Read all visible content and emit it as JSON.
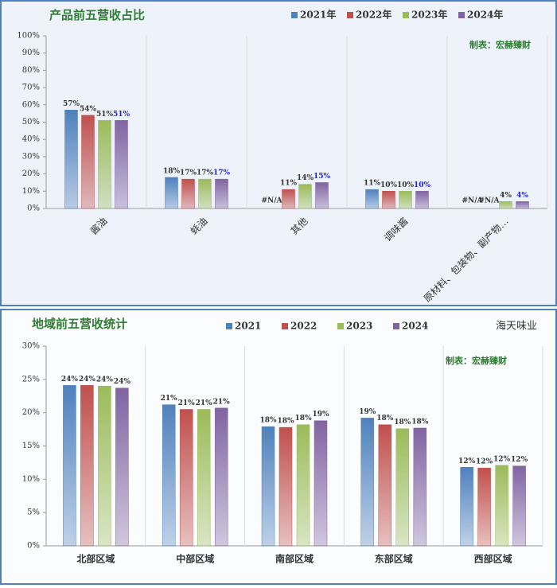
{
  "chart_data": [
    {
      "type": "bar",
      "title": "产品前五营收占比",
      "annotation": "制表：宏赫臻财",
      "categories": [
        "酱油",
        "蚝油",
        "其他",
        "调味酱",
        "原材料、包装物、副产物…"
      ],
      "series": [
        {
          "name": "2021年",
          "color": "#4f81bd",
          "values": [
            57,
            18,
            null,
            11,
            null
          ],
          "value_labels": [
            "57%",
            "18%",
            "#N/A",
            "11%",
            "#N/A"
          ]
        },
        {
          "name": "2022年",
          "color": "#c0504d",
          "values": [
            54,
            17,
            11,
            10,
            null
          ],
          "value_labels": [
            "54%",
            "17%",
            "11%",
            "10%",
            "#N/A"
          ]
        },
        {
          "name": "2023年",
          "color": "#9bbb59",
          "values": [
            51,
            17,
            14,
            10,
            4
          ],
          "value_labels": [
            "51%",
            "17%",
            "14%",
            "10%",
            "4%"
          ]
        },
        {
          "name": "2024年",
          "color": "#8064a2",
          "values": [
            51,
            17,
            15,
            10,
            4
          ],
          "value_labels": [
            "51%",
            "17%",
            "15%",
            "10%",
            "4%"
          ],
          "label_color": "#1a1aff"
        }
      ],
      "ylim": [
        0,
        100
      ],
      "yticks": [
        {
          "value": 0,
          "label": "0%"
        },
        {
          "value": 10,
          "label": "10%"
        },
        {
          "value": 20,
          "label": "20%"
        },
        {
          "value": 30,
          "label": "30%"
        },
        {
          "value": 40,
          "label": "40%"
        },
        {
          "value": 50,
          "label": "50%"
        },
        {
          "value": 60,
          "label": "60%"
        },
        {
          "value": 70,
          "label": "70%"
        },
        {
          "value": 80,
          "label": "80%"
        },
        {
          "value": 90,
          "label": "90%"
        },
        {
          "value": 100,
          "label": "100%"
        }
      ]
    },
    {
      "type": "bar",
      "title": "地域前五营收统计",
      "subtitle": "海天味业",
      "annotation": "制表：宏赫臻财",
      "categories": [
        "北部区域",
        "中部区域",
        "南部区域",
        "东部区域",
        "西部区域"
      ],
      "series": [
        {
          "name": "2021",
          "color": "#4f81bd",
          "values": [
            24.1,
            21.2,
            17.9,
            19.2,
            11.8
          ],
          "value_labels": [
            "24%",
            "21%",
            "18%",
            "19%",
            "12%"
          ]
        },
        {
          "name": "2022",
          "color": "#c0504d",
          "values": [
            24.1,
            20.5,
            17.8,
            18.2,
            11.7
          ],
          "value_labels": [
            "24%",
            "21%",
            "18%",
            "18%",
            "12%"
          ]
        },
        {
          "name": "2023",
          "color": "#9bbb59",
          "values": [
            24.0,
            20.5,
            18.2,
            17.6,
            12.1
          ],
          "value_labels": [
            "24%",
            "21%",
            "18%",
            "18%",
            "12%"
          ]
        },
        {
          "name": "2024",
          "color": "#8064a2",
          "values": [
            23.7,
            20.7,
            18.8,
            17.7,
            12.0
          ],
          "value_labels": [
            "24%",
            "21%",
            "19%",
            "18%",
            "12%"
          ]
        }
      ],
      "ylim": [
        0,
        30
      ],
      "yticks": [
        {
          "value": 0,
          "label": "0%"
        },
        {
          "value": 5,
          "label": "5%"
        },
        {
          "value": 10,
          "label": "10%"
        },
        {
          "value": 15,
          "label": "15%"
        },
        {
          "value": 20,
          "label": "20%"
        },
        {
          "value": 25,
          "label": "25%"
        },
        {
          "value": 30,
          "label": "30%"
        }
      ]
    }
  ]
}
